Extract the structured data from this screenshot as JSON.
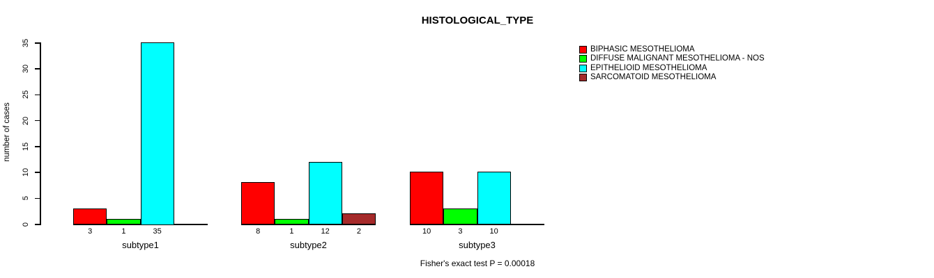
{
  "chart_data": {
    "type": "bar",
    "title": "HISTOLOGICAL_TYPE",
    "ylabel": "number of cases",
    "xlabel": "",
    "ylim": [
      0,
      35
    ],
    "yticks": [
      0,
      5,
      10,
      15,
      20,
      25,
      30,
      35
    ],
    "categories": [
      "subtype1",
      "subtype2",
      "subtype3"
    ],
    "series": [
      {
        "name": "BIPHASIC MESOTHELIOMA",
        "color": "#ff0000",
        "values": [
          3,
          8,
          10
        ]
      },
      {
        "name": "DIFFUSE MALIGNANT MESOTHELIOMA - NOS",
        "color": "#00ff00",
        "values": [
          1,
          1,
          3
        ]
      },
      {
        "name": "EPITHELIOID MESOTHELIOMA",
        "color": "#00ffff",
        "values": [
          35,
          12,
          10
        ]
      },
      {
        "name": "SARCOMATOID MESOTHELIOMA",
        "color": "#a52a2a",
        "values": [
          0,
          2,
          0
        ]
      }
    ],
    "bar_value_labels": true,
    "hide_zero_bars": true,
    "grid": false,
    "legend_position": "top-right",
    "annotation": "Fisher's exact test P = 0.00018"
  }
}
